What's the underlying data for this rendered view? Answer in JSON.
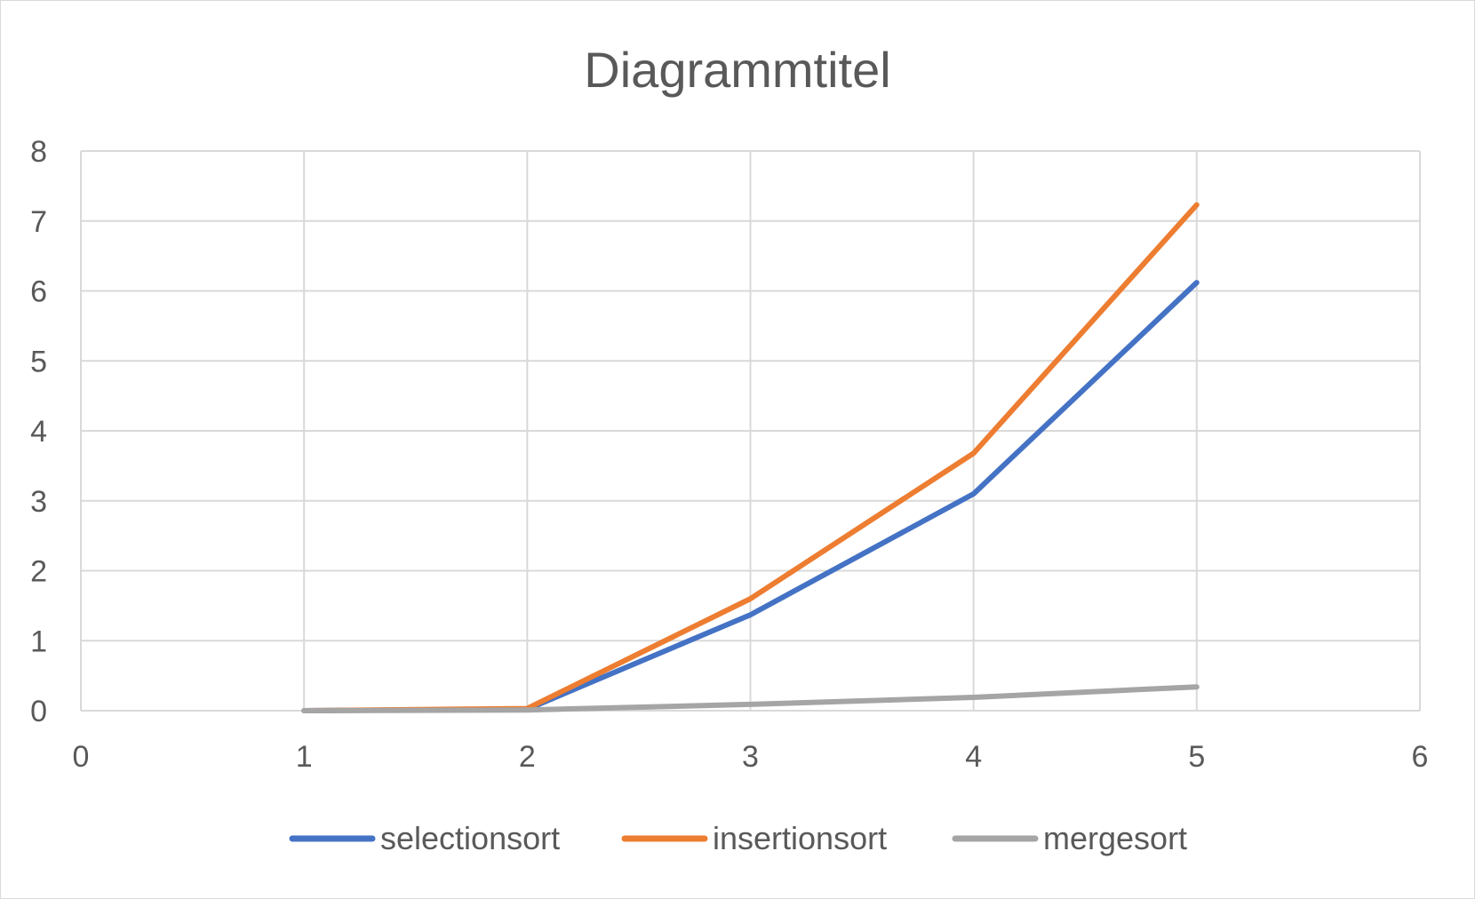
{
  "chart_data": {
    "type": "scatter",
    "title": "Diagrammtitel",
    "xlabel": "",
    "ylabel": "",
    "xlim": [
      0,
      6
    ],
    "ylim": [
      0,
      8
    ],
    "x_ticks": [
      "0",
      "1",
      "2",
      "3",
      "4",
      "5",
      "6"
    ],
    "y_ticks": [
      "0",
      "1",
      "2",
      "3",
      "4",
      "5",
      "6",
      "7",
      "8"
    ],
    "grid": true,
    "legend_position": "bottom",
    "lines": "straight",
    "series": [
      {
        "name": "selectionsort",
        "color": "#4472C4",
        "x": [
          1,
          2,
          3,
          4,
          5
        ],
        "y": [
          0.0,
          0.02,
          1.37,
          3.1,
          6.12
        ]
      },
      {
        "name": "insertionsort",
        "color": "#ED7D31",
        "x": [
          1,
          2,
          3,
          4,
          5
        ],
        "y": [
          0.0,
          0.03,
          1.6,
          3.68,
          7.23
        ]
      },
      {
        "name": "mergesort",
        "color": "#A5A5A5",
        "x": [
          1,
          2,
          3,
          4,
          5
        ],
        "y": [
          0.0,
          0.01,
          0.09,
          0.19,
          0.34
        ]
      }
    ]
  }
}
